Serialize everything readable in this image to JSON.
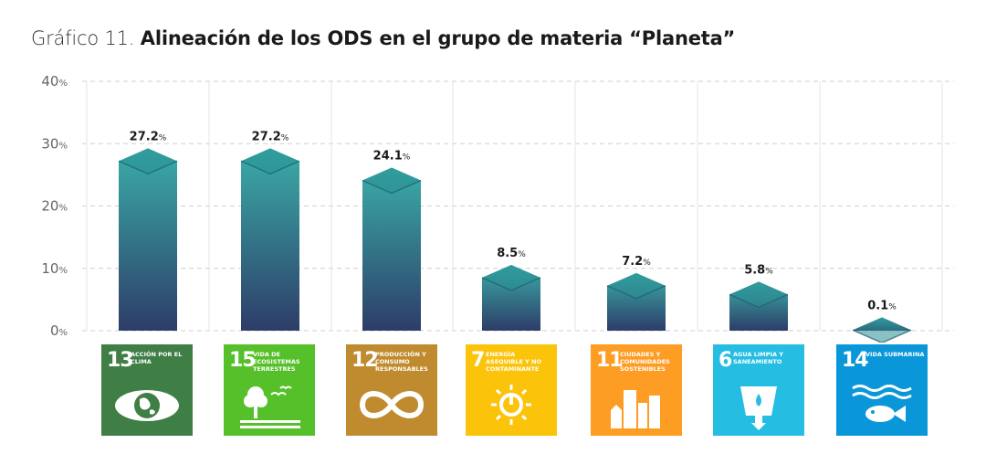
{
  "title": {
    "prefix": "Gráfico 11.",
    "main": "Alineación de los ODS en el grupo de materia “Planeta”"
  },
  "chart_data": {
    "type": "bar",
    "categories": [
      "13",
      "15",
      "12",
      "7",
      "11",
      "6",
      "14"
    ],
    "values": [
      27.2,
      27.2,
      24.1,
      8.5,
      7.2,
      5.8,
      0.1
    ],
    "value_labels": [
      "27.2",
      "27.2",
      "24.1",
      "8.5",
      "7.2",
      "5.8",
      "0.1"
    ],
    "value_suffix": "%",
    "ylim": [
      0,
      40
    ],
    "yticks": [
      {
        "value": 0,
        "label": "0",
        "suffix": "%"
      },
      {
        "value": 10,
        "label": "10",
        "suffix": "%"
      },
      {
        "value": 20,
        "label": "20",
        "suffix": "%"
      },
      {
        "value": 30,
        "label": "30",
        "suffix": "%"
      },
      {
        "value": 40,
        "label": "40",
        "suffix": "%"
      }
    ],
    "grid": true,
    "bar_gradient": [
      "#3aada8",
      "#2d3d68"
    ]
  },
  "tiles": [
    {
      "number": "13",
      "label": "Acción por el clima",
      "color": "#3f7e44",
      "icon": "eye-globe-icon"
    },
    {
      "number": "15",
      "label": "Vida de ecosistemas terrestres",
      "color": "#56c02b",
      "icon": "tree-birds-icon"
    },
    {
      "number": "12",
      "label": "Producción y consumo responsables",
      "color": "#bf8b2e",
      "icon": "infinity-icon"
    },
    {
      "number": "7",
      "label": "Energía asequible y no contaminante",
      "color": "#fcc30b",
      "icon": "sun-power-icon"
    },
    {
      "number": "11",
      "label": "Ciudades y comunidades sostenibles",
      "color": "#fd9d24",
      "icon": "city-buildings-icon"
    },
    {
      "number": "6",
      "label": "Agua limpia y saneamiento",
      "color": "#26bde2",
      "icon": "water-glass-icon"
    },
    {
      "number": "14",
      "label": "Vida submarina",
      "color": "#0a97d9",
      "icon": "fish-waves-icon"
    }
  ]
}
